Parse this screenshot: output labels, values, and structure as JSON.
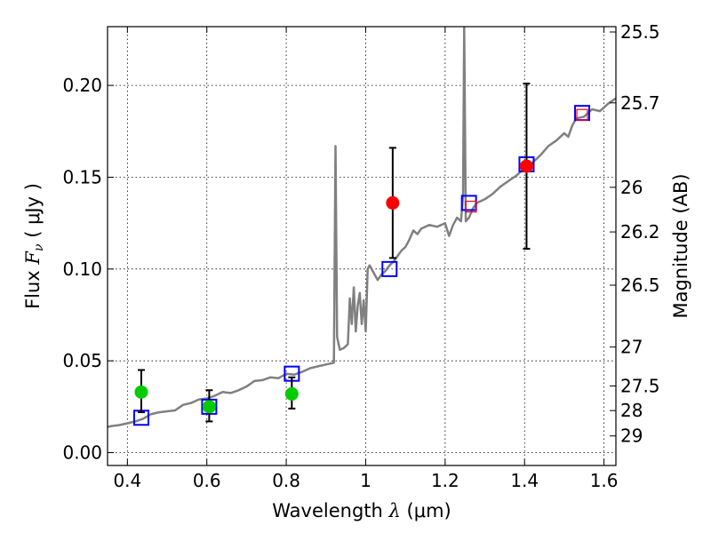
{
  "chart_data": {
    "type": "scatter",
    "xlabel_prefix": "Wavelength",
    "xlabel_symbol": "λ",
    "xlabel_unit": "(μm)",
    "ylabel_prefix": "Flux",
    "ylabel_symbol": "F",
    "ylabel_sub": "ν",
    "ylabel_unit": "( μJy )",
    "y2label": "Magnitude (AB)",
    "xlim": [
      0.35,
      1.63
    ],
    "ylim": [
      -0.007,
      0.232
    ],
    "xticks": [
      0.4,
      0.6,
      0.8,
      1.0,
      1.2,
      1.4,
      1.6
    ],
    "xtick_labels": [
      "0.4",
      "0.6",
      "0.8",
      "1",
      "1.2",
      "1.4",
      "1.6"
    ],
    "yticks": [
      0.0,
      0.05,
      0.1,
      0.15,
      0.2
    ],
    "ytick_labels": [
      "0.00",
      "0.05",
      "0.10",
      "0.15",
      "0.20"
    ],
    "y2ticks": [
      {
        "label": "25.5",
        "flux": 0.2291
      },
      {
        "label": "25.7",
        "flux": 0.1905
      },
      {
        "label": "26",
        "flux": 0.1445
      },
      {
        "label": "26.2",
        "flux": 0.1202
      },
      {
        "label": "26.5",
        "flux": 0.0912
      },
      {
        "label": "27",
        "flux": 0.0575
      },
      {
        "label": "27.5",
        "flux": 0.0363
      },
      {
        "label": "28",
        "flux": 0.0229
      },
      {
        "label": "29",
        "flux": 0.0091
      }
    ],
    "grid": true,
    "series": [
      {
        "name": "model spectrum",
        "kind": "line",
        "color": "#808080",
        "points": [
          [
            0.35,
            0.014
          ],
          [
            0.36,
            0.0145
          ],
          [
            0.38,
            0.015
          ],
          [
            0.4,
            0.016
          ],
          [
            0.42,
            0.017
          ],
          [
            0.44,
            0.0185
          ],
          [
            0.46,
            0.021
          ],
          [
            0.48,
            0.022
          ],
          [
            0.5,
            0.0225
          ],
          [
            0.52,
            0.023
          ],
          [
            0.54,
            0.026
          ],
          [
            0.56,
            0.027
          ],
          [
            0.58,
            0.029
          ],
          [
            0.6,
            0.0295
          ],
          [
            0.62,
            0.031
          ],
          [
            0.64,
            0.033
          ],
          [
            0.66,
            0.0325
          ],
          [
            0.68,
            0.034
          ],
          [
            0.7,
            0.036
          ],
          [
            0.72,
            0.039
          ],
          [
            0.74,
            0.0395
          ],
          [
            0.76,
            0.041
          ],
          [
            0.78,
            0.0405
          ],
          [
            0.8,
            0.043
          ],
          [
            0.82,
            0.0425
          ],
          [
            0.84,
            0.044
          ],
          [
            0.86,
            0.046
          ],
          [
            0.88,
            0.047
          ],
          [
            0.9,
            0.048
          ],
          [
            0.92,
            0.049
          ],
          [
            0.924,
            0.167
          ],
          [
            0.928,
            0.063
          ],
          [
            0.935,
            0.056
          ],
          [
            0.945,
            0.057
          ],
          [
            0.955,
            0.059
          ],
          [
            0.96,
            0.084
          ],
          [
            0.965,
            0.07
          ],
          [
            0.97,
            0.09
          ],
          [
            0.975,
            0.066
          ],
          [
            0.98,
            0.08
          ],
          [
            0.985,
            0.087
          ],
          [
            0.99,
            0.07
          ],
          [
            0.995,
            0.083
          ],
          [
            1.0,
            0.066
          ],
          [
            1.005,
            0.1
          ],
          [
            1.01,
            0.102
          ],
          [
            1.02,
            0.098
          ],
          [
            1.03,
            0.094
          ],
          [
            1.04,
            0.097
          ],
          [
            1.05,
            0.099
          ],
          [
            1.06,
            0.102
          ],
          [
            1.07,
            0.104
          ],
          [
            1.08,
            0.107
          ],
          [
            1.09,
            0.11
          ],
          [
            1.1,
            0.112
          ],
          [
            1.11,
            0.116
          ],
          [
            1.12,
            0.121
          ],
          [
            1.13,
            0.119
          ],
          [
            1.14,
            0.122
          ],
          [
            1.16,
            0.124
          ],
          [
            1.18,
            0.123
          ],
          [
            1.2,
            0.125
          ],
          [
            1.21,
            0.118
          ],
          [
            1.22,
            0.124
          ],
          [
            1.23,
            0.128
          ],
          [
            1.24,
            0.126
          ],
          [
            1.245,
            0.14
          ],
          [
            1.248,
            0.232
          ],
          [
            1.252,
            0.126
          ],
          [
            1.26,
            0.128
          ],
          [
            1.27,
            0.133
          ],
          [
            1.28,
            0.136
          ],
          [
            1.3,
            0.138
          ],
          [
            1.32,
            0.141
          ],
          [
            1.34,
            0.145
          ],
          [
            1.36,
            0.148
          ],
          [
            1.38,
            0.151
          ],
          [
            1.4,
            0.155
          ],
          [
            1.42,
            0.158
          ],
          [
            1.44,
            0.162
          ],
          [
            1.46,
            0.167
          ],
          [
            1.48,
            0.17
          ],
          [
            1.5,
            0.174
          ],
          [
            1.51,
            0.172
          ],
          [
            1.52,
            0.178
          ],
          [
            1.53,
            0.182
          ],
          [
            1.55,
            0.183
          ],
          [
            1.57,
            0.187
          ],
          [
            1.59,
            0.186
          ],
          [
            1.61,
            0.19
          ],
          [
            1.63,
            0.193
          ]
        ]
      },
      {
        "name": "model photometry",
        "kind": "square",
        "edge_color": "#0000ff",
        "points": [
          [
            0.435,
            0.019
          ],
          [
            0.606,
            0.025
          ],
          [
            0.814,
            0.043
          ],
          [
            1.06,
            0.1
          ],
          [
            1.26,
            0.136
          ],
          [
            1.405,
            0.157
          ],
          [
            1.545,
            0.185
          ]
        ]
      },
      {
        "name": "detections (green)",
        "kind": "circle",
        "color": "#00cc00",
        "points": [
          {
            "x": 0.435,
            "y": 0.033,
            "lo": 0.022,
            "hi": 0.045
          },
          {
            "x": 0.606,
            "y": 0.025,
            "lo": 0.017,
            "hi": 0.034
          },
          {
            "x": 0.814,
            "y": 0.032,
            "lo": 0.024,
            "hi": 0.041
          }
        ]
      },
      {
        "name": "detections (red)",
        "kind": "circle",
        "color": "#ff0000",
        "points": [
          {
            "x": 1.068,
            "y": 0.136,
            "lo": 0.106,
            "hi": 0.166
          },
          {
            "x": 1.405,
            "y": 0.156,
            "lo": 0.111,
            "hi": 0.201
          }
        ]
      },
      {
        "name": "upper limits (red squares)",
        "kind": "square",
        "edge_color": "#ff0000",
        "points": [
          [
            1.265,
            0.134
          ],
          [
            1.545,
            0.184
          ]
        ]
      }
    ]
  }
}
